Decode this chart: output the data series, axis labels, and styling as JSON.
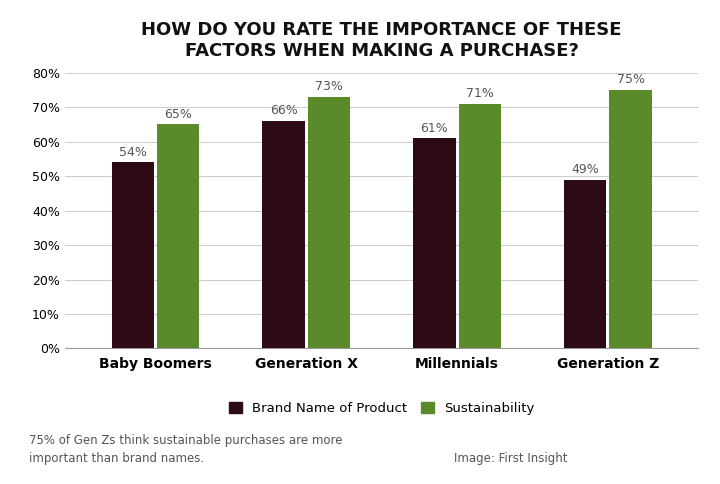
{
  "title": "HOW DO YOU RATE THE IMPORTANCE OF THESE\nFACTORS WHEN MAKING A PURCHASE?",
  "categories": [
    "Baby Boomers",
    "Generation X",
    "Millennials",
    "Generation Z"
  ],
  "brand_values": [
    54,
    66,
    61,
    49
  ],
  "sustain_values": [
    65,
    73,
    71,
    75
  ],
  "brand_color": "#2d0a14",
  "sustain_color": "#5a8a2a",
  "annot_color": "#555555",
  "ylim": [
    0,
    80
  ],
  "yticks": [
    0,
    10,
    20,
    30,
    40,
    50,
    60,
    70,
    80
  ],
  "ytick_labels": [
    "0%",
    "10%",
    "20%",
    "30%",
    "40%",
    "50%",
    "60%",
    "70%",
    "80%"
  ],
  "legend_brand": "Brand Name of Product",
  "legend_sustain": "Sustainability",
  "footnote_left": "75% of Gen Zs think sustainable purchases are more\nimportant than brand names.",
  "footnote_right": "Image: First Insight",
  "bar_width": 0.28,
  "title_fontsize": 13,
  "label_fontsize": 10,
  "tick_fontsize": 9,
  "annot_fontsize": 9,
  "legend_fontsize": 9.5,
  "footnote_fontsize": 8.5,
  "background_color": "#ffffff",
  "grid_color": "#cccccc"
}
